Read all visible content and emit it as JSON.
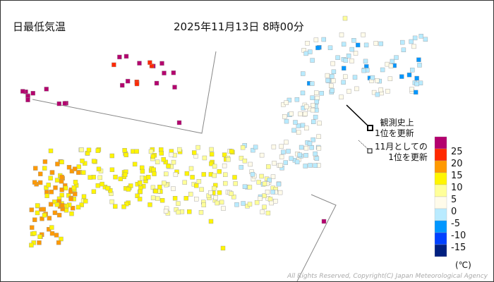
{
  "header": {
    "title": "日最低気温",
    "datetime": "2025年11月13日 8時00分"
  },
  "annotations": [
    {
      "line1": "観測史上",
      "line2": "1位を更新",
      "marker": "thick-square"
    },
    {
      "line1": "11月としての",
      "line2": "1位を更新",
      "marker": "thin-square"
    }
  ],
  "legend": {
    "unit": "(℃)",
    "labels": [
      "25",
      "20",
      "15",
      "10",
      "5",
      "0",
      "-5",
      "-10",
      "-15"
    ],
    "bins": [
      {
        "range": "25以上",
        "color": "#b4006e"
      },
      {
        "range": "20-25",
        "color": "#ff2800"
      },
      {
        "range": "15-20",
        "color": "#ff9900"
      },
      {
        "range": "10-15",
        "color": "#fff500"
      },
      {
        "range": "5-10",
        "color": "#ffff99"
      },
      {
        "range": "0-5",
        "color": "#fffbea"
      },
      {
        "range": "-5-0",
        "color": "#b9ebff"
      },
      {
        "range": "-10--5",
        "color": "#0096ff"
      },
      {
        "range": "-15--10",
        "color": "#0041ff"
      },
      {
        "range": "-15未満",
        "color": "#002080"
      }
    ]
  },
  "copyright": "All Rights Reserved, Copyright(C) Japan Meteorological Agency"
}
